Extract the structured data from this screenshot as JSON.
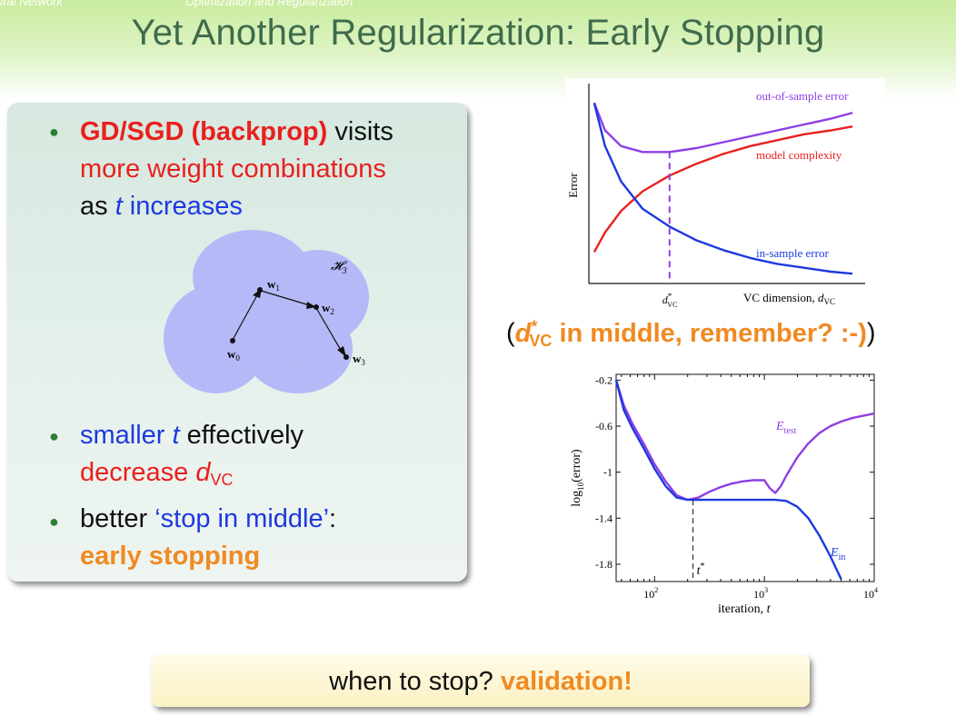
{
  "header": {
    "nav_left": "ural Network",
    "nav_right": "Optimization and Regularization",
    "title": "Yet Another Regularization: Early Stopping"
  },
  "left_panel": {
    "bullet1": {
      "part1": "GD/SGD (backprop)",
      "part2": " visits",
      "part3": "more weight combinations",
      "part4": "as ",
      "part5": "t",
      "part6": " increases"
    },
    "diagram": {
      "set_label": "𝓗",
      "set_sub": "3",
      "w0": "w",
      "w0_sub": "0",
      "w1": "w",
      "w1_sub": "1",
      "w2": "w",
      "w2_sub": "2",
      "w3": "w",
      "w3_sub": "3"
    },
    "bullet2": {
      "part1": "smaller ",
      "part2": "t",
      "part3": " effectively",
      "part4": "decrease ",
      "part5": "d",
      "part6": "VC"
    },
    "bullet3": {
      "part1": "better ",
      "part2": "‘stop in middle’",
      "part3": ":",
      "part4": "early stopping"
    }
  },
  "remember": {
    "open": "(",
    "d": "d",
    "star": "*",
    "sub": "VC",
    "rest": " in middle, remember? :-)",
    "close": ")"
  },
  "bottom": {
    "text": "when to stop? ",
    "emphasis": "validation!"
  },
  "colors": {
    "title": "#3f6b4c",
    "red": "#e8201e",
    "blue": "#1d39e0",
    "orange": "#f08a22",
    "purple": "#8f3ee6"
  },
  "chart_data": [
    {
      "type": "line",
      "title": "",
      "xlabel": "VC dimension, d_VC",
      "xlabel_main": "VC dimension, ",
      "xlabel_var": "d",
      "xlabel_sub": "VC",
      "ylabel": "Error",
      "xtick_label_var": "d",
      "xtick_label_star": "*",
      "xtick_label_sub": "VC",
      "x_range": [
        0,
        1
      ],
      "y_range": [
        0,
        1
      ],
      "series": [
        {
          "name": "out-of-sample error",
          "color": "#8f3ee6",
          "x": [
            0.02,
            0.06,
            0.12,
            0.2,
            0.3,
            0.4,
            0.5,
            0.6,
            0.7,
            0.8,
            0.9,
            0.98
          ],
          "y": [
            0.92,
            0.78,
            0.7,
            0.67,
            0.67,
            0.69,
            0.72,
            0.75,
            0.78,
            0.81,
            0.84,
            0.87
          ]
        },
        {
          "name": "model complexity",
          "color": "#e8201e",
          "x": [
            0.02,
            0.06,
            0.12,
            0.2,
            0.3,
            0.4,
            0.5,
            0.6,
            0.7,
            0.8,
            0.9,
            0.98
          ],
          "y": [
            0.16,
            0.26,
            0.37,
            0.47,
            0.55,
            0.61,
            0.66,
            0.7,
            0.73,
            0.76,
            0.78,
            0.8
          ]
        },
        {
          "name": "in-sample error",
          "color": "#1d39e0",
          "x": [
            0.02,
            0.06,
            0.12,
            0.2,
            0.3,
            0.4,
            0.5,
            0.6,
            0.7,
            0.8,
            0.9,
            0.98
          ],
          "y": [
            0.92,
            0.7,
            0.52,
            0.38,
            0.29,
            0.22,
            0.17,
            0.13,
            0.1,
            0.08,
            0.06,
            0.05
          ]
        }
      ],
      "optimum_x": 0.3,
      "optimum_y": 0.67
    },
    {
      "type": "line",
      "title": "",
      "xlabel": "iteration, t",
      "xlabel_main": "iteration, ",
      "xlabel_var": "t",
      "ylabel": "log10(error)",
      "ylabel_main": "log",
      "ylabel_sub": "10",
      "ylabel_rest": "(error)",
      "x_scale": "log",
      "x_range_log10": [
        1.65,
        4.0
      ],
      "ylim": [
        -1.95,
        -0.15
      ],
      "yticks": [
        -0.2,
        -0.6,
        -1,
        -1.4,
        -1.8
      ],
      "ytick_labels": [
        "-0.2",
        "-0.6",
        "-1",
        "-1.4",
        "-1.8"
      ],
      "xticks_log10": [
        2,
        3,
        4
      ],
      "xtick_base": "10",
      "xtick_exponents": [
        "2",
        "3",
        "4"
      ],
      "series": [
        {
          "name": "E_test",
          "label_main": "E",
          "label_sub": "test",
          "color": "#8f3ee6",
          "log10_x": [
            1.65,
            1.72,
            1.8,
            1.9,
            2.0,
            2.1,
            2.2,
            2.3,
            2.4,
            2.5,
            2.6,
            2.7,
            2.8,
            2.9,
            3.0,
            3.05,
            3.1,
            3.15,
            3.2,
            3.3,
            3.4,
            3.5,
            3.6,
            3.7,
            3.8,
            3.9,
            4.0
          ],
          "y": [
            -0.2,
            -0.42,
            -0.58,
            -0.75,
            -0.93,
            -1.08,
            -1.2,
            -1.24,
            -1.22,
            -1.17,
            -1.13,
            -1.1,
            -1.08,
            -1.07,
            -1.07,
            -1.14,
            -1.18,
            -1.12,
            -1.03,
            -0.87,
            -0.75,
            -0.66,
            -0.6,
            -0.56,
            -0.53,
            -0.51,
            -0.49
          ]
        },
        {
          "name": "E_in",
          "label_main": "E",
          "label_sub": "in",
          "color": "#1d39e0",
          "log10_x": [
            1.65,
            1.72,
            1.8,
            1.9,
            2.0,
            2.1,
            2.2,
            2.3,
            2.5,
            2.7,
            2.9,
            3.0,
            3.1,
            3.2,
            3.3,
            3.4,
            3.5,
            3.6,
            3.7
          ],
          "y": [
            -0.2,
            -0.46,
            -0.62,
            -0.79,
            -0.97,
            -1.12,
            -1.22,
            -1.24,
            -1.24,
            -1.24,
            -1.24,
            -1.24,
            -1.24,
            -1.25,
            -1.3,
            -1.4,
            -1.55,
            -1.73,
            -1.93
          ]
        }
      ],
      "t_star_label": "t",
      "t_star_mark": "*",
      "t_star_log10": 2.35
    }
  ]
}
